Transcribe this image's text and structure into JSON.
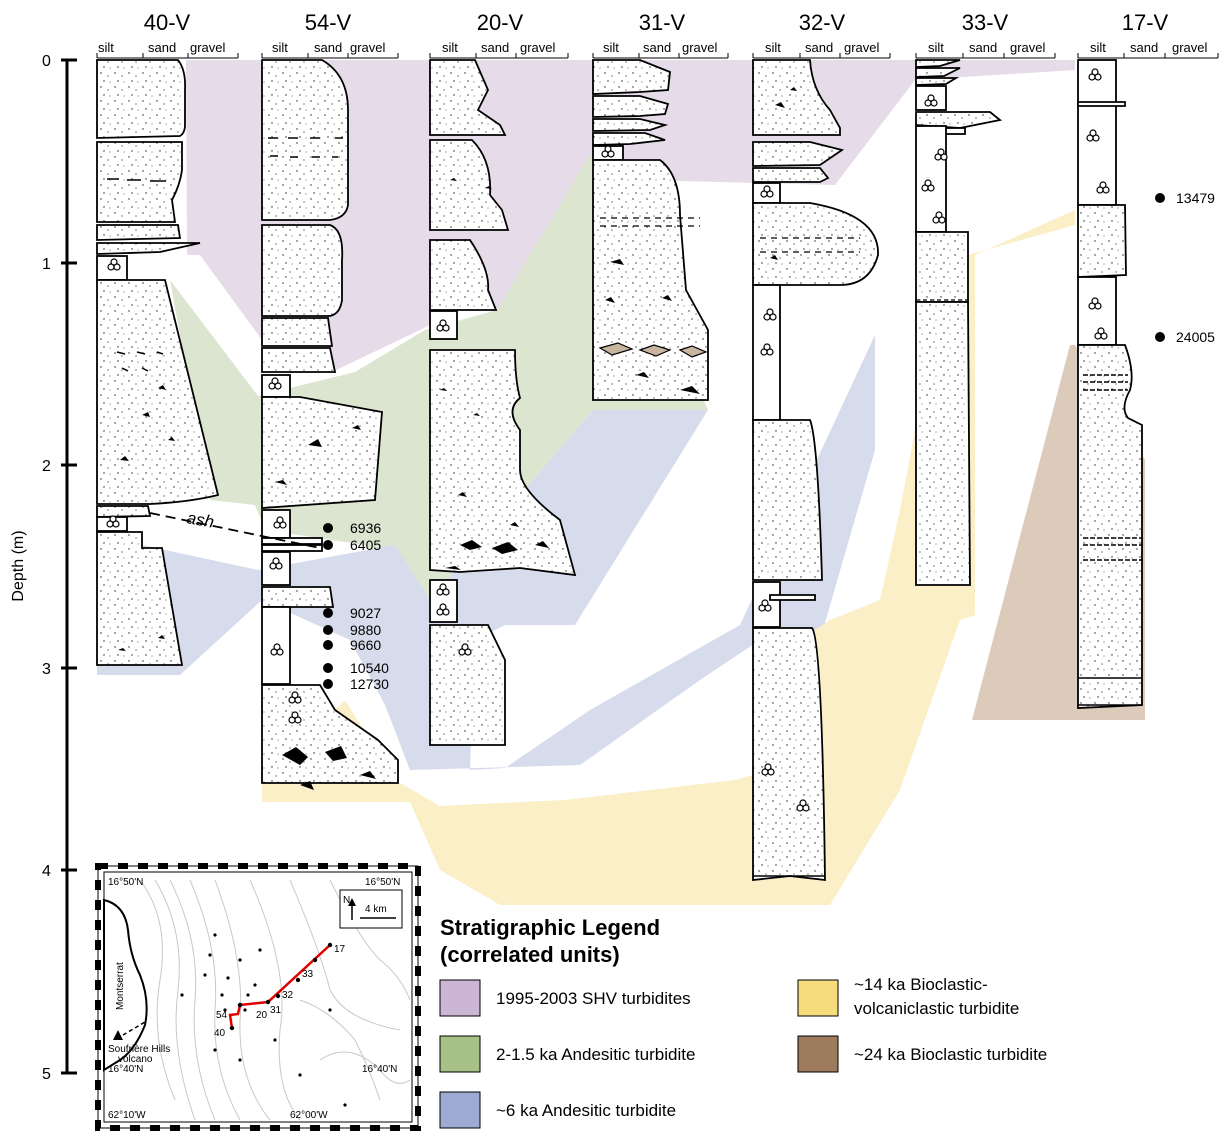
{
  "axis": {
    "label": "Depth (m)",
    "ticks": [
      "0",
      "1",
      "2",
      "3",
      "4",
      "5"
    ]
  },
  "grain_labels": [
    "silt",
    "sand",
    "gravel"
  ],
  "cores": [
    {
      "name": "40-V"
    },
    {
      "name": "54-V"
    },
    {
      "name": "20-V"
    },
    {
      "name": "31-V"
    },
    {
      "name": "32-V"
    },
    {
      "name": "33-V"
    },
    {
      "name": "17-V"
    }
  ],
  "ash_label": "ash",
  "dates_54V": [
    "6936",
    "6405",
    "9027",
    "9880",
    "9660",
    "10540",
    "12730"
  ],
  "dates_17V": [
    "13479",
    "24005"
  ],
  "legend": {
    "title_line1": "Stratigraphic Legend",
    "title_line2": "(correlated units)",
    "items": [
      {
        "label": "1995-2003 SHV turbidites",
        "color": "#cbb6d5"
      },
      {
        "label": "2-1.5 ka Andesitic turbidite",
        "color": "#a8c186"
      },
      {
        "label": "~6 ka Andesitic turbidite",
        "color": "#9eacd4"
      },
      {
        "label_line1": "~14 ka Bioclastic-",
        "label_line2": "volcaniclastic turbidite",
        "color": "#f6dc7b"
      },
      {
        "label": "~24 ka Bioclastic turbidite",
        "color": "#9e7b5c"
      }
    ]
  },
  "map": {
    "corner_labels": [
      "16°50'N",
      "16°50'N",
      "16°40'N",
      "16°40'N",
      "62°10'W",
      "62°00'W"
    ],
    "north": "N",
    "scale": "4 km",
    "island": "Montserrat",
    "volcano_line1": "Soufrière Hills",
    "volcano_line2": "volcano",
    "site_labels": [
      "17",
      "33",
      "32",
      "31",
      "20",
      "54",
      "40"
    ]
  }
}
